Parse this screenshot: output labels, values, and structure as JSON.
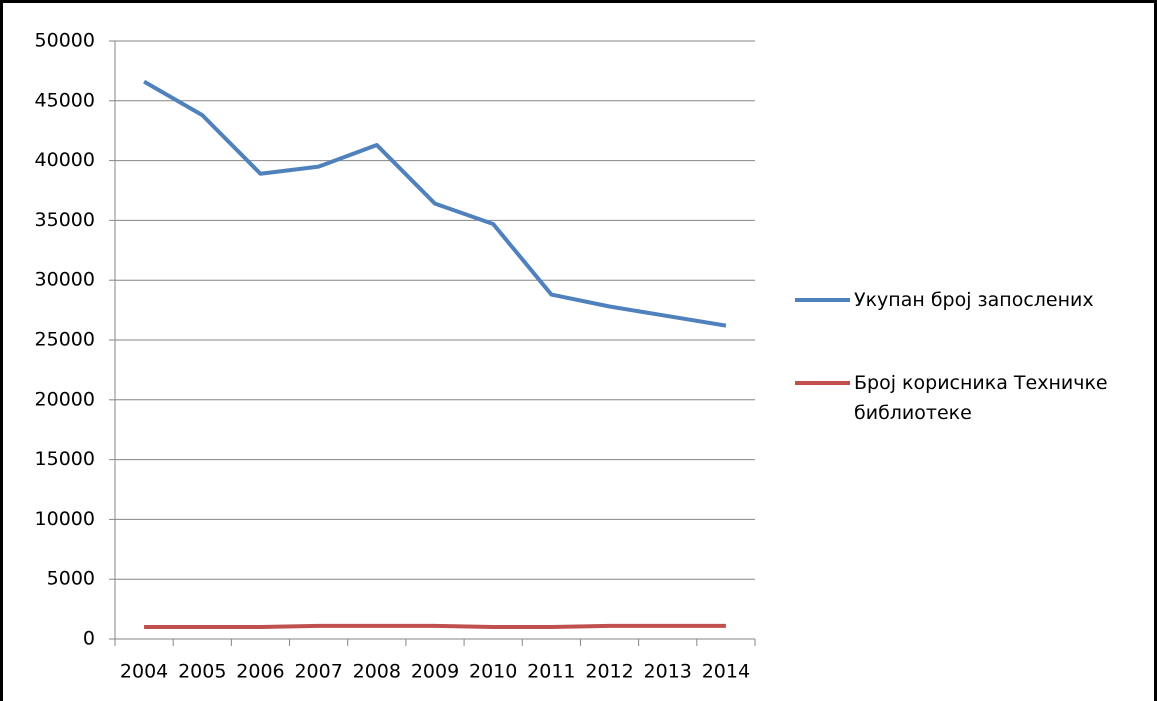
{
  "chart_data": {
    "type": "line",
    "categories": [
      "2004",
      "2005",
      "2006",
      "2007",
      "2008",
      "2009",
      "2010",
      "2011",
      "2012",
      "2013",
      "2014"
    ],
    "series": [
      {
        "name": "Укупан број запослених",
        "color": "#4f81bd",
        "values": [
          46600,
          43800,
          38900,
          39500,
          41300,
          36400,
          34700,
          28800,
          27800,
          27000,
          26200
        ]
      },
      {
        "name": "Број корисника Техничке библиотеке",
        "color": "#c0504d",
        "values": [
          1000,
          1000,
          1000,
          1100,
          1100,
          1100,
          1000,
          1000,
          1100,
          1100,
          1100
        ]
      }
    ],
    "ylim": [
      0,
      50000
    ],
    "yticks": [
      0,
      5000,
      10000,
      15000,
      20000,
      25000,
      30000,
      35000,
      40000,
      45000,
      50000
    ],
    "grid": true,
    "legend": "right"
  }
}
